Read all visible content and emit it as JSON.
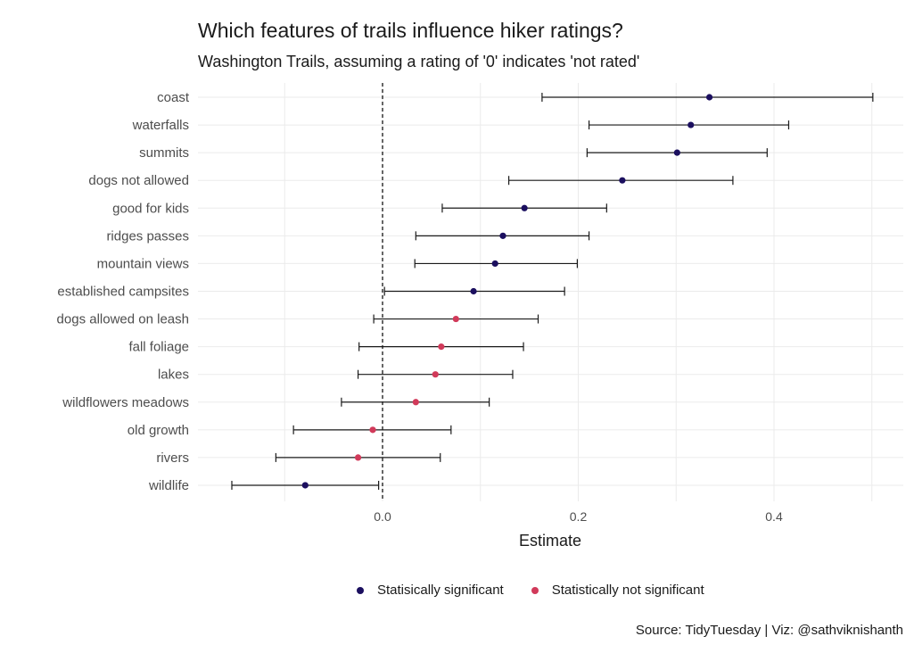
{
  "title": "Which features of trails influence hiker ratings?",
  "subtitle": "Washington Trails, assuming a rating of '0' indicates 'not rated'",
  "caption": "Source: TidyTuesday | Viz: @sathviknishanth",
  "chart_data": {
    "type": "scatter",
    "title": "Which features of trails influence hiker ratings?",
    "subtitle": "Washington Trails, assuming a rating of '0' indicates 'not rated'",
    "xlabel": "Estimate",
    "ylabel": "",
    "xlim": [
      -0.205,
      0.535
    ],
    "xticks": [
      0.0,
      0.2,
      0.4
    ],
    "xtick_labels": [
      "0.0",
      "0.2",
      "0.4"
    ],
    "reference_line": 0,
    "grid": true,
    "legend_position": "bottom",
    "series": [
      {
        "name": "Statisically significant",
        "color": "#1b0f5f"
      },
      {
        "name": "Statistically not significant",
        "color": "#d13a5a"
      }
    ],
    "points": [
      {
        "term": "coast",
        "estimate": 0.334,
        "low": 0.163,
        "high": 0.501,
        "significant": true
      },
      {
        "term": "waterfalls",
        "estimate": 0.315,
        "low": 0.211,
        "high": 0.415,
        "significant": true
      },
      {
        "term": "summits",
        "estimate": 0.301,
        "low": 0.209,
        "high": 0.393,
        "significant": true
      },
      {
        "term": "dogs not allowed",
        "estimate": 0.245,
        "low": 0.129,
        "high": 0.358,
        "significant": true
      },
      {
        "term": "good for kids",
        "estimate": 0.145,
        "low": 0.061,
        "high": 0.229,
        "significant": true
      },
      {
        "term": "ridges passes",
        "estimate": 0.123,
        "low": 0.034,
        "high": 0.211,
        "significant": true
      },
      {
        "term": "mountain views",
        "estimate": 0.115,
        "low": 0.033,
        "high": 0.199,
        "significant": true
      },
      {
        "term": "established campsites",
        "estimate": 0.093,
        "low": 0.002,
        "high": 0.186,
        "significant": true
      },
      {
        "term": "dogs allowed on leash",
        "estimate": 0.075,
        "low": -0.009,
        "high": 0.159,
        "significant": false
      },
      {
        "term": "fall foliage",
        "estimate": 0.06,
        "low": -0.024,
        "high": 0.144,
        "significant": false
      },
      {
        "term": "lakes",
        "estimate": 0.054,
        "low": -0.025,
        "high": 0.133,
        "significant": false
      },
      {
        "term": "wildflowers meadows",
        "estimate": 0.034,
        "low": -0.042,
        "high": 0.109,
        "significant": false
      },
      {
        "term": "old growth",
        "estimate": -0.01,
        "low": -0.091,
        "high": 0.07,
        "significant": false
      },
      {
        "term": "rivers",
        "estimate": -0.025,
        "low": -0.109,
        "high": 0.059,
        "significant": false
      },
      {
        "term": "wildlife",
        "estimate": -0.079,
        "low": -0.154,
        "high": -0.004,
        "significant": true
      }
    ]
  }
}
